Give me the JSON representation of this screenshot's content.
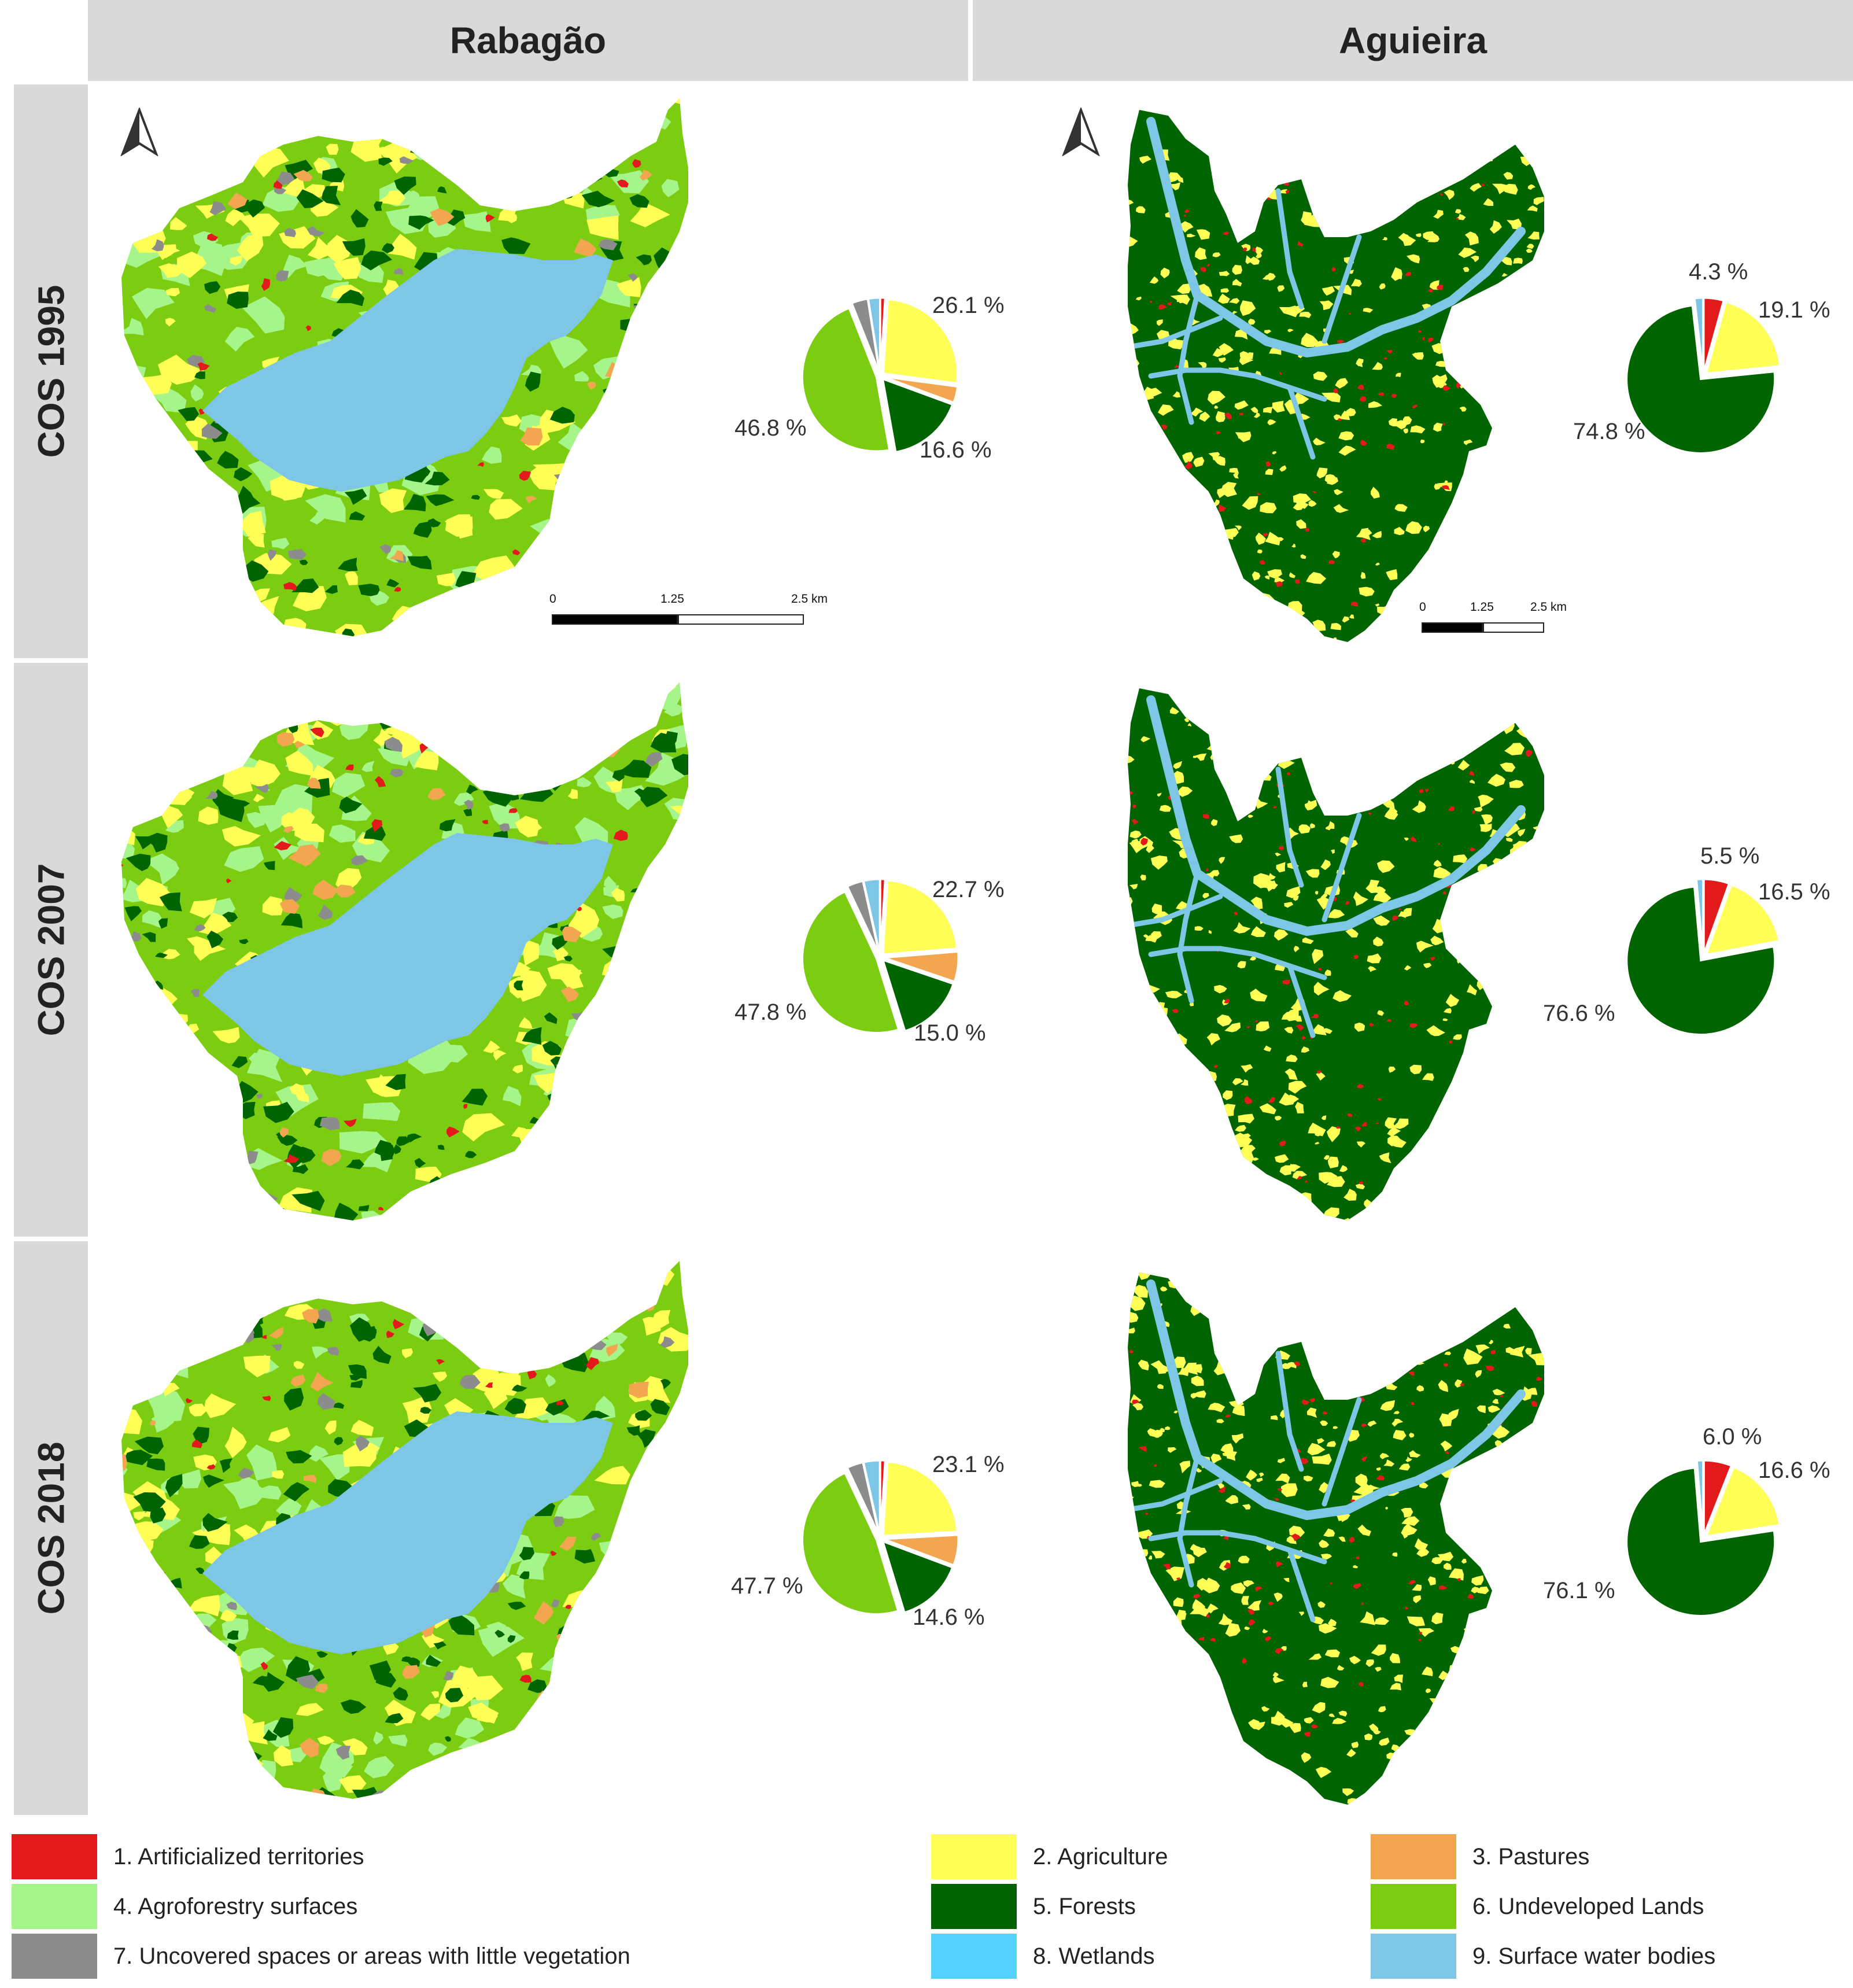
{
  "columns": [
    "Rabagão",
    "Aguieira"
  ],
  "rows": [
    "COS 1995",
    "COS 2007",
    "COS 2018"
  ],
  "colors": {
    "artificial": "#e31a1c",
    "agriculture": "#ffff55",
    "pastures": "#f2a650",
    "agroforestry": "#a6f58a",
    "forests": "#006400",
    "undeveloped": "#7ccd12",
    "uncovered": "#8c8c8c",
    "wetlands": "#55d1ff",
    "water": "#7ec6e6"
  },
  "legend": [
    {
      "key": "artificial",
      "label": "1. Artificialized territories"
    },
    {
      "key": "agriculture",
      "label": "2. Agriculture"
    },
    {
      "key": "pastures",
      "label": "3. Pastures"
    },
    {
      "key": "agroforestry",
      "label": "4. Agroforestry surfaces"
    },
    {
      "key": "forests",
      "label": "5. Forests"
    },
    {
      "key": "undeveloped",
      "label": "6. Undeveloped Lands"
    },
    {
      "key": "uncovered",
      "label": "7. Uncovered spaces or areas with little vegetation"
    },
    {
      "key": "wetlands",
      "label": "8. Wetlands"
    },
    {
      "key": "water",
      "label": "9. Surface water bodies"
    }
  ],
  "scalebar": {
    "ticks": [
      "0",
      "1.25",
      "2.5 km"
    ]
  },
  "panels": [
    {
      "basin": "Rabagão",
      "year": "COS 1995",
      "labels": {
        "agriculture": "26.1 %",
        "forests": "16.6 %",
        "undeveloped": "46.8 %"
      },
      "pie": [
        {
          "key": "artificial",
          "value": 1.0
        },
        {
          "key": "agriculture",
          "value": 26.1
        },
        {
          "key": "pastures",
          "value": 3.5
        },
        {
          "key": "forests",
          "value": 16.6
        },
        {
          "key": "undeveloped",
          "value": 46.8
        },
        {
          "key": "uncovered",
          "value": 3.5
        },
        {
          "key": "water",
          "value": 2.5
        }
      ]
    },
    {
      "basin": "Aguieira",
      "year": "COS 1995",
      "labels": {
        "artificial": "4.3 %",
        "agriculture": "19.1 %",
        "forests": "74.8 %"
      },
      "pie": [
        {
          "key": "artificial",
          "value": 4.3
        },
        {
          "key": "agriculture",
          "value": 19.1
        },
        {
          "key": "forests",
          "value": 74.8
        },
        {
          "key": "water",
          "value": 1.8
        }
      ]
    },
    {
      "basin": "Rabagão",
      "year": "COS 2007",
      "labels": {
        "agriculture": "22.7 %",
        "forests": "15.0 %",
        "undeveloped": "47.8 %"
      },
      "pie": [
        {
          "key": "artificial",
          "value": 1.0
        },
        {
          "key": "agriculture",
          "value": 22.7
        },
        {
          "key": "pastures",
          "value": 6.5
        },
        {
          "key": "forests",
          "value": 15.0
        },
        {
          "key": "undeveloped",
          "value": 47.8
        },
        {
          "key": "uncovered",
          "value": 3.5
        },
        {
          "key": "water",
          "value": 3.5
        }
      ]
    },
    {
      "basin": "Aguieira",
      "year": "COS 2007",
      "labels": {
        "artificial": "5.5 %",
        "agriculture": "16.5 %",
        "forests": "76.6 %"
      },
      "pie": [
        {
          "key": "artificial",
          "value": 5.5
        },
        {
          "key": "agriculture",
          "value": 16.5
        },
        {
          "key": "forests",
          "value": 76.6
        },
        {
          "key": "water",
          "value": 1.4
        }
      ]
    },
    {
      "basin": "Rabagão",
      "year": "COS 2018",
      "labels": {
        "agriculture": "23.1 %",
        "forests": "14.6 %",
        "undeveloped": "47.7 %"
      },
      "pie": [
        {
          "key": "artificial",
          "value": 1.0
        },
        {
          "key": "agriculture",
          "value": 23.1
        },
        {
          "key": "pastures",
          "value": 6.6
        },
        {
          "key": "forests",
          "value": 14.6
        },
        {
          "key": "undeveloped",
          "value": 47.7
        },
        {
          "key": "uncovered",
          "value": 3.5
        },
        {
          "key": "water",
          "value": 3.5
        }
      ]
    },
    {
      "basin": "Aguieira",
      "year": "COS 2018",
      "labels": {
        "artificial": "6.0 %",
        "agriculture": "16.6 %",
        "forests": "76.1 %"
      },
      "pie": [
        {
          "key": "artificial",
          "value": 6.0
        },
        {
          "key": "agriculture",
          "value": 16.6
        },
        {
          "key": "forests",
          "value": 76.1
        },
        {
          "key": "water",
          "value": 1.3
        }
      ]
    }
  ]
}
